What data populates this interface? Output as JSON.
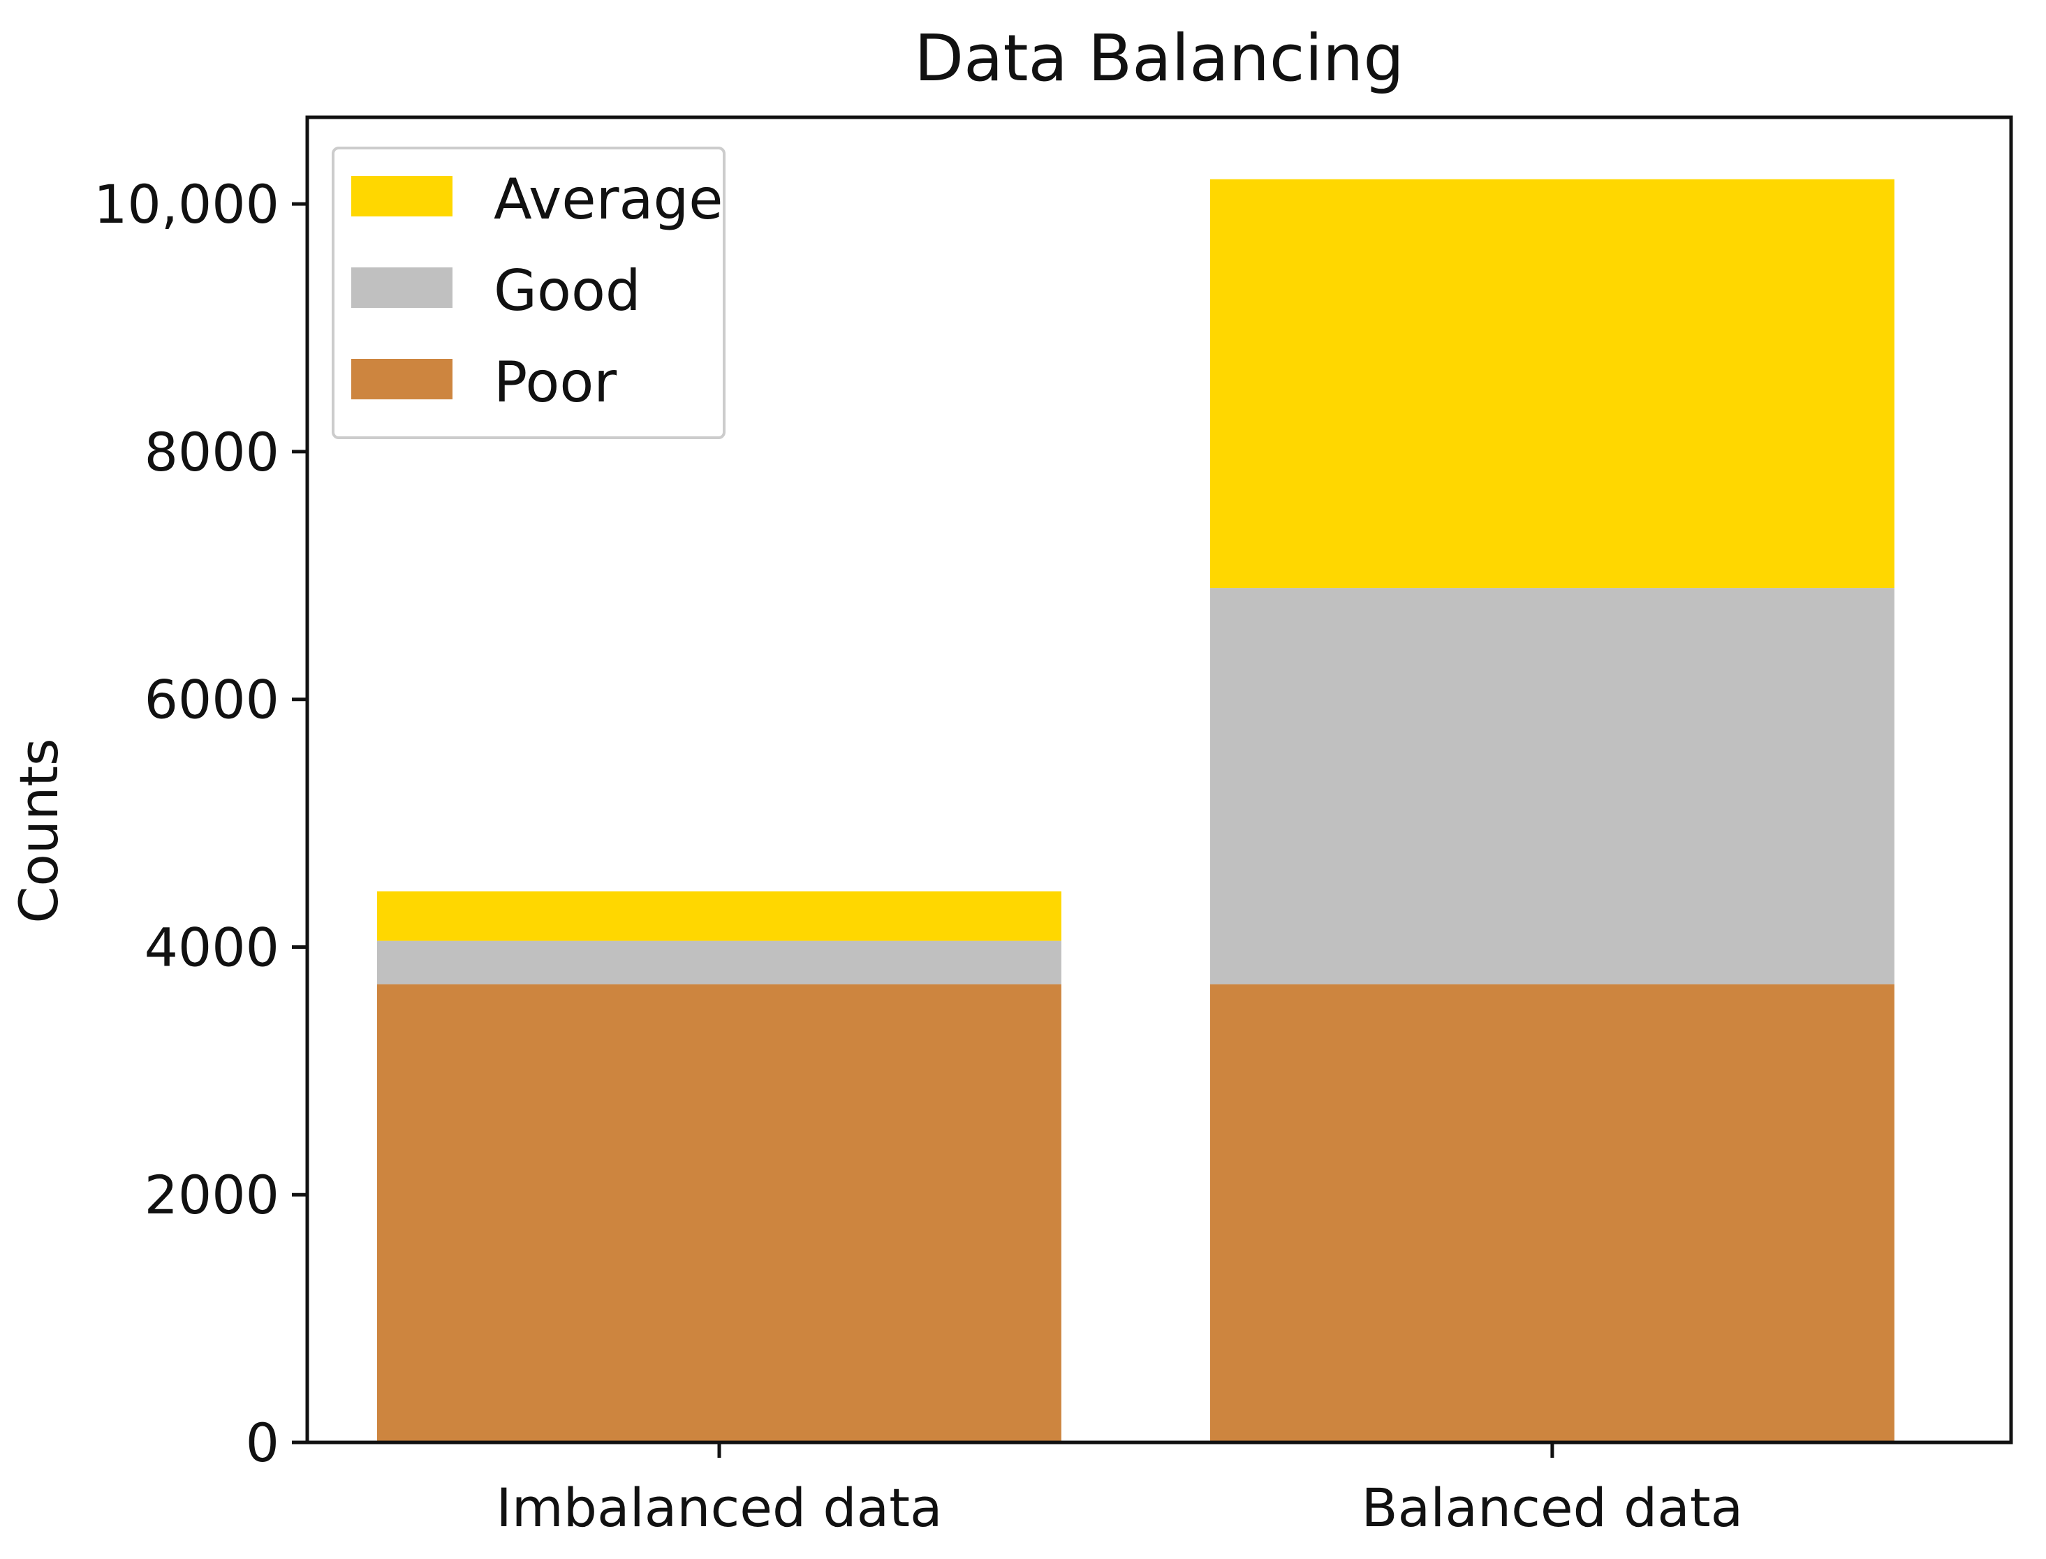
{
  "chart_data": {
    "type": "bar",
    "stacked": true,
    "title": "Data Balancing",
    "xlabel": "",
    "ylabel": "Counts",
    "categories": [
      "Imbalanced data",
      "Balanced data"
    ],
    "series": [
      {
        "name": "Poor",
        "color": "#cd853f",
        "values": [
          3700,
          3700
        ]
      },
      {
        "name": "Good",
        "color": "#c0c0c0",
        "values": [
          350,
          3200
        ]
      },
      {
        "name": "Average",
        "color": "#ffd700",
        "values": [
          400,
          3300
        ]
      }
    ],
    "ylim": [
      0,
      10700
    ],
    "yticks": [
      {
        "value": 0,
        "label": "0"
      },
      {
        "value": 2000,
        "label": "2000"
      },
      {
        "value": 4000,
        "label": "4000"
      },
      {
        "value": 6000,
        "label": "6000"
      },
      {
        "value": 8000,
        "label": "8000"
      },
      {
        "value": 10000,
        "label": "10,000"
      }
    ],
    "legend": {
      "position": "top-left",
      "entries": [
        {
          "label": "Average",
          "color": "#ffd700"
        },
        {
          "label": "Good",
          "color": "#c0c0c0"
        },
        {
          "label": "Poor",
          "color": "#cd853f"
        }
      ]
    },
    "grid": false
  }
}
